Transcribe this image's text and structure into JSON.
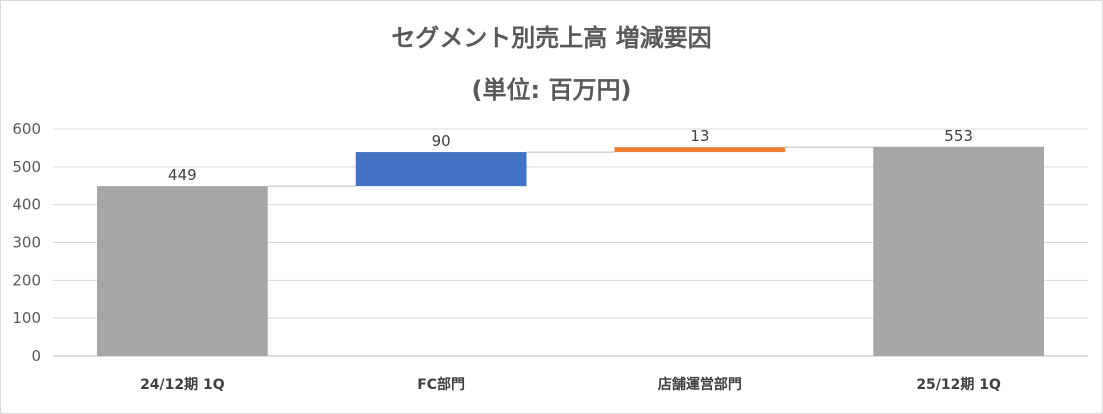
{
  "chart_data": {
    "type": "bar",
    "subtype": "waterfall",
    "title": "セグメント別売上高 増減要因",
    "subtitle": "(単位: 百万円)",
    "categories": [
      "24/12期 1Q",
      "FC部門",
      "店舗運営部門",
      "25/12期 1Q"
    ],
    "bars": [
      {
        "category": "24/12期 1Q",
        "kind": "total",
        "value": 449,
        "label": "449",
        "color": "#a6a6a6"
      },
      {
        "category": "FC部門",
        "kind": "increase",
        "value": 90,
        "label": "90",
        "color": "#4472c4"
      },
      {
        "category": "店舗運営部門",
        "kind": "increase",
        "value": 13,
        "label": "13",
        "color": "#ed7d31"
      },
      {
        "category": "25/12期 1Q",
        "kind": "total",
        "value": 553,
        "label": "553",
        "color": "#a6a6a6"
      }
    ],
    "yticks": [
      0,
      100,
      200,
      300,
      400,
      500,
      600
    ],
    "ylim": [
      0,
      600
    ],
    "grid": true,
    "connectors": true,
    "legend": "none",
    "gridline_color": "#d9d9d9",
    "connector_color": "#bfbfbf"
  }
}
